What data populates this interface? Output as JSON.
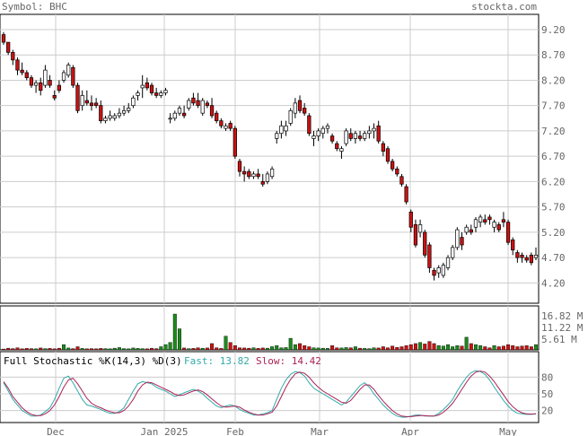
{
  "header": {
    "symbol_label": "Symbol: BHC",
    "brand": "stockta.com"
  },
  "colors": {
    "up": "#ffffff",
    "down": "#cc1111",
    "candle_outline": "#000000",
    "vol_up": "#1a8c1a",
    "vol_down": "#cc1111",
    "fast": "#33aaaa",
    "slow": "#aa2255",
    "grid": "#cccccc",
    "text": "#666666"
  },
  "chart_data": [
    {
      "type": "candlestick",
      "name": "price",
      "ylim": [
        3.8,
        9.5
      ],
      "yticks": [
        "9.20",
        "8.70",
        "8.20",
        "7.70",
        "7.20",
        "6.70",
        "6.20",
        "5.70",
        "5.20",
        "4.70",
        "4.20"
      ],
      "x_ticks": [
        "Dec",
        "Jan 2025",
        "Feb",
        "Mar",
        "Apr",
        "May"
      ],
      "ohlc": [
        [
          9.1,
          9.15,
          8.9,
          8.95
        ],
        [
          8.95,
          8.95,
          8.7,
          8.75
        ],
        [
          8.75,
          8.8,
          8.5,
          8.6
        ],
        [
          8.6,
          8.65,
          8.3,
          8.4
        ],
        [
          8.4,
          8.55,
          8.3,
          8.35
        ],
        [
          8.35,
          8.4,
          8.2,
          8.25
        ],
        [
          8.25,
          8.3,
          8.05,
          8.1
        ],
        [
          8.1,
          8.2,
          7.95,
          8.15
        ],
        [
          8.15,
          8.25,
          7.9,
          8.0
        ],
        [
          8.1,
          8.5,
          8.05,
          8.4
        ],
        [
          8.2,
          8.3,
          8.05,
          8.1
        ],
        [
          7.9,
          8.0,
          7.8,
          7.85
        ],
        [
          8.1,
          8.2,
          7.95,
          8.0
        ],
        [
          8.2,
          8.4,
          8.15,
          8.35
        ],
        [
          8.3,
          8.55,
          8.25,
          8.5
        ],
        [
          8.45,
          8.5,
          8.05,
          8.1
        ],
        [
          8.1,
          8.15,
          7.55,
          7.6
        ],
        [
          7.7,
          8.0,
          7.6,
          7.9
        ],
        [
          7.8,
          8.0,
          7.7,
          7.75
        ],
        [
          7.75,
          7.9,
          7.6,
          7.7
        ],
        [
          7.75,
          7.85,
          7.65,
          7.7
        ],
        [
          7.7,
          7.8,
          7.35,
          7.4
        ],
        [
          7.4,
          7.5,
          7.35,
          7.45
        ],
        [
          7.45,
          7.6,
          7.4,
          7.5
        ],
        [
          7.45,
          7.55,
          7.4,
          7.5
        ],
        [
          7.5,
          7.65,
          7.45,
          7.55
        ],
        [
          7.55,
          7.7,
          7.5,
          7.6
        ],
        [
          7.6,
          7.75,
          7.55,
          7.65
        ],
        [
          7.7,
          7.9,
          7.65,
          7.85
        ],
        [
          7.9,
          8.0,
          7.8,
          7.95
        ],
        [
          8.05,
          8.3,
          7.85,
          8.1
        ],
        [
          8.15,
          8.25,
          8.0,
          8.05
        ],
        [
          8.1,
          8.15,
          7.9,
          7.95
        ],
        [
          7.95,
          8.05,
          7.85,
          7.9
        ],
        [
          7.9,
          8.0,
          7.85,
          7.95
        ],
        [
          7.95,
          8.05,
          7.9,
          8.0
        ],
        [
          7.45,
          7.55,
          7.35,
          7.45
        ],
        [
          7.45,
          7.6,
          7.4,
          7.55
        ],
        [
          7.55,
          7.7,
          7.5,
          7.65
        ],
        [
          7.55,
          7.7,
          7.45,
          7.5
        ],
        [
          7.65,
          7.85,
          7.6,
          7.8
        ],
        [
          7.85,
          7.95,
          7.7,
          7.75
        ],
        [
          7.8,
          7.95,
          7.65,
          7.7
        ],
        [
          7.55,
          7.85,
          7.5,
          7.8
        ],
        [
          7.75,
          7.8,
          7.65,
          7.7
        ],
        [
          7.7,
          7.85,
          7.45,
          7.5
        ],
        [
          7.55,
          7.6,
          7.35,
          7.4
        ],
        [
          7.4,
          7.45,
          7.25,
          7.3
        ],
        [
          7.25,
          7.35,
          7.2,
          7.3
        ],
        [
          7.35,
          7.4,
          7.2,
          7.25
        ],
        [
          7.25,
          7.3,
          6.65,
          6.7
        ],
        [
          6.6,
          6.65,
          6.3,
          6.4
        ],
        [
          6.4,
          6.5,
          6.2,
          6.35
        ],
        [
          6.4,
          6.45,
          6.25,
          6.3
        ],
        [
          6.3,
          6.4,
          6.25,
          6.35
        ],
        [
          6.35,
          6.45,
          6.25,
          6.3
        ],
        [
          6.2,
          6.35,
          6.1,
          6.15
        ],
        [
          6.2,
          6.4,
          6.15,
          6.35
        ],
        [
          6.3,
          6.5,
          6.25,
          6.45
        ],
        [
          7.05,
          7.2,
          6.95,
          7.15
        ],
        [
          7.15,
          7.4,
          7.05,
          7.3
        ],
        [
          7.2,
          7.4,
          7.1,
          7.3
        ],
        [
          7.35,
          7.65,
          7.3,
          7.6
        ],
        [
          7.55,
          7.85,
          7.45,
          7.75
        ],
        [
          7.8,
          7.9,
          7.55,
          7.6
        ],
        [
          7.65,
          7.75,
          7.5,
          7.55
        ],
        [
          7.5,
          7.55,
          7.1,
          7.15
        ],
        [
          7.05,
          7.2,
          6.9,
          7.1
        ],
        [
          7.1,
          7.25,
          7.0,
          7.2
        ],
        [
          7.15,
          7.3,
          7.05,
          7.25
        ],
        [
          7.25,
          7.35,
          7.15,
          7.3
        ],
        [
          7.1,
          7.15,
          6.95,
          7.0
        ],
        [
          6.95,
          7.0,
          6.8,
          6.85
        ],
        [
          6.8,
          6.9,
          6.65,
          6.85
        ],
        [
          6.95,
          7.25,
          6.9,
          7.2
        ],
        [
          7.15,
          7.25,
          7.0,
          7.05
        ],
        [
          7.05,
          7.2,
          6.95,
          7.15
        ],
        [
          7.1,
          7.2,
          7.0,
          7.05
        ],
        [
          7.05,
          7.2,
          7.0,
          7.15
        ],
        [
          7.15,
          7.3,
          7.05,
          7.2
        ],
        [
          7.2,
          7.35,
          7.05,
          7.25
        ],
        [
          7.3,
          7.4,
          6.95,
          7.0
        ],
        [
          6.95,
          7.0,
          6.7,
          6.8
        ],
        [
          6.85,
          6.9,
          6.55,
          6.6
        ],
        [
          6.6,
          6.65,
          6.4,
          6.45
        ],
        [
          6.45,
          6.5,
          6.3,
          6.35
        ],
        [
          6.3,
          6.35,
          6.1,
          6.15
        ],
        [
          6.1,
          6.15,
          5.75,
          5.8
        ],
        [
          5.6,
          5.65,
          5.2,
          5.3
        ],
        [
          5.35,
          5.45,
          4.9,
          4.95
        ],
        [
          5.2,
          5.45,
          5.1,
          5.35
        ],
        [
          5.2,
          5.25,
          4.7,
          4.75
        ],
        [
          4.95,
          5.0,
          4.4,
          4.5
        ],
        [
          4.45,
          4.5,
          4.25,
          4.35
        ],
        [
          4.4,
          4.55,
          4.3,
          4.5
        ],
        [
          4.35,
          4.6,
          4.3,
          4.55
        ],
        [
          4.5,
          4.75,
          4.45,
          4.7
        ],
        [
          4.7,
          4.95,
          4.65,
          4.9
        ],
        [
          4.9,
          5.3,
          4.85,
          5.25
        ],
        [
          5.1,
          5.2,
          4.85,
          4.95
        ],
        [
          5.2,
          5.35,
          5.15,
          5.3
        ],
        [
          5.25,
          5.35,
          5.15,
          5.2
        ],
        [
          5.3,
          5.5,
          5.2,
          5.45
        ],
        [
          5.4,
          5.55,
          5.3,
          5.5
        ],
        [
          5.45,
          5.55,
          5.35,
          5.4
        ],
        [
          5.5,
          5.55,
          5.35,
          5.45
        ],
        [
          5.3,
          5.45,
          5.2,
          5.4
        ],
        [
          5.35,
          5.4,
          5.2,
          5.25
        ],
        [
          5.45,
          5.6,
          5.3,
          5.4
        ],
        [
          5.4,
          5.45,
          4.95,
          5.0
        ],
        [
          5.05,
          5.1,
          4.75,
          4.85
        ],
        [
          4.8,
          4.85,
          4.6,
          4.7
        ],
        [
          4.75,
          4.8,
          4.6,
          4.7
        ],
        [
          4.7,
          4.75,
          4.6,
          4.65
        ],
        [
          4.75,
          4.8,
          4.55,
          4.6
        ],
        [
          4.7,
          4.9,
          4.65,
          4.75
        ]
      ]
    },
    {
      "type": "bar",
      "name": "volume",
      "yticks": [
        "16.82 M",
        "11.22 M",
        "5.61 M"
      ],
      "ylim": [
        0,
        20
      ],
      "values": [
        0.4,
        0.8,
        0.6,
        1.0,
        0.5,
        0.7,
        0.6,
        0.5,
        0.9,
        0.6,
        0.7,
        0.5,
        0.8,
        2.5,
        0.9,
        0.6,
        1.5,
        0.7,
        0.5,
        0.6,
        0.5,
        0.7,
        0.6,
        0.5,
        0.8,
        1.1,
        0.6,
        0.5,
        0.9,
        0.7,
        0.6,
        0.5,
        0.8,
        0.6,
        1.5,
        2.5,
        3.5,
        17.0,
        10.0,
        0.9,
        0.6,
        0.7,
        1.0,
        0.8,
        0.9,
        3.0,
        1.0,
        0.7,
        6.5,
        3.5,
        2.0,
        1.0,
        0.9,
        0.8,
        1.0,
        0.7,
        0.9,
        0.8,
        1.5,
        2.0,
        1.0,
        1.1,
        5.5,
        2.5,
        3.0,
        2.0,
        1.5,
        1.0,
        0.9,
        0.8,
        0.7,
        2.0,
        1.0,
        0.9,
        1.1,
        1.0,
        1.5,
        0.8,
        0.7,
        0.6,
        1.0,
        0.9,
        1.5,
        1.0,
        1.8,
        1.2,
        1.5,
        2.0,
        2.5,
        3.0,
        3.5,
        2.8,
        4.0,
        3.0,
        2.0,
        1.8,
        2.5,
        1.5,
        2.0,
        1.8,
        6.0,
        3.0,
        2.5,
        2.0,
        1.5,
        1.0,
        2.0,
        1.5,
        1.8,
        2.5,
        2.0,
        1.5,
        1.8,
        2.0,
        1.5,
        2.5
      ]
    },
    {
      "type": "line",
      "name": "stochastic",
      "title": "Full Stochastic %K(14,3) %D(3)",
      "fast_label": "Fast: 13.82",
      "slow_label": "Slow: 14.42",
      "yticks": [
        "80",
        "50",
        "20"
      ],
      "ylim": [
        0,
        100
      ],
      "series": [
        {
          "name": "Fast",
          "values": [
            70,
            55,
            40,
            30,
            20,
            15,
            10,
            10,
            12,
            18,
            25,
            40,
            60,
            78,
            82,
            70,
            55,
            40,
            30,
            28,
            25,
            22,
            18,
            15,
            15,
            18,
            25,
            40,
            55,
            68,
            72,
            70,
            68,
            62,
            58,
            55,
            50,
            45,
            48,
            52,
            55,
            58,
            55,
            50,
            42,
            35,
            28,
            25,
            28,
            30,
            28,
            22,
            18,
            15,
            12,
            12,
            14,
            16,
            20,
            40,
            60,
            75,
            85,
            90,
            88,
            82,
            70,
            60,
            55,
            50,
            45,
            40,
            35,
            30,
            35,
            45,
            55,
            65,
            70,
            62,
            50,
            40,
            30,
            22,
            15,
            10,
            8,
            8,
            10,
            12,
            12,
            10,
            10,
            10,
            15,
            22,
            30,
            40,
            55,
            68,
            80,
            88,
            92,
            90,
            85,
            75,
            62,
            50,
            38,
            28,
            20,
            15,
            14,
            13,
            13,
            13.82
          ]
        },
        {
          "name": "Slow",
          "values": [
            72,
            60,
            45,
            35,
            25,
            18,
            13,
            11,
            11,
            14,
            20,
            30,
            45,
            62,
            75,
            78,
            68,
            55,
            42,
            33,
            28,
            25,
            21,
            18,
            16,
            16,
            20,
            28,
            40,
            55,
            66,
            71,
            70,
            66,
            62,
            58,
            54,
            49,
            47,
            48,
            52,
            55,
            57,
            54,
            48,
            41,
            34,
            28,
            26,
            27,
            28,
            26,
            21,
            17,
            14,
            12,
            12,
            14,
            17,
            28,
            45,
            62,
            76,
            86,
            89,
            87,
            80,
            70,
            62,
            55,
            50,
            45,
            40,
            35,
            33,
            38,
            48,
            58,
            66,
            66,
            58,
            47,
            37,
            28,
            20,
            14,
            10,
            9,
            9,
            10,
            11,
            11,
            10,
            10,
            12,
            17,
            24,
            33,
            45,
            58,
            71,
            82,
            89,
            91,
            89,
            82,
            72,
            60,
            48,
            36,
            27,
            20,
            16,
            14,
            13.5,
            14.42
          ]
        }
      ]
    }
  ]
}
